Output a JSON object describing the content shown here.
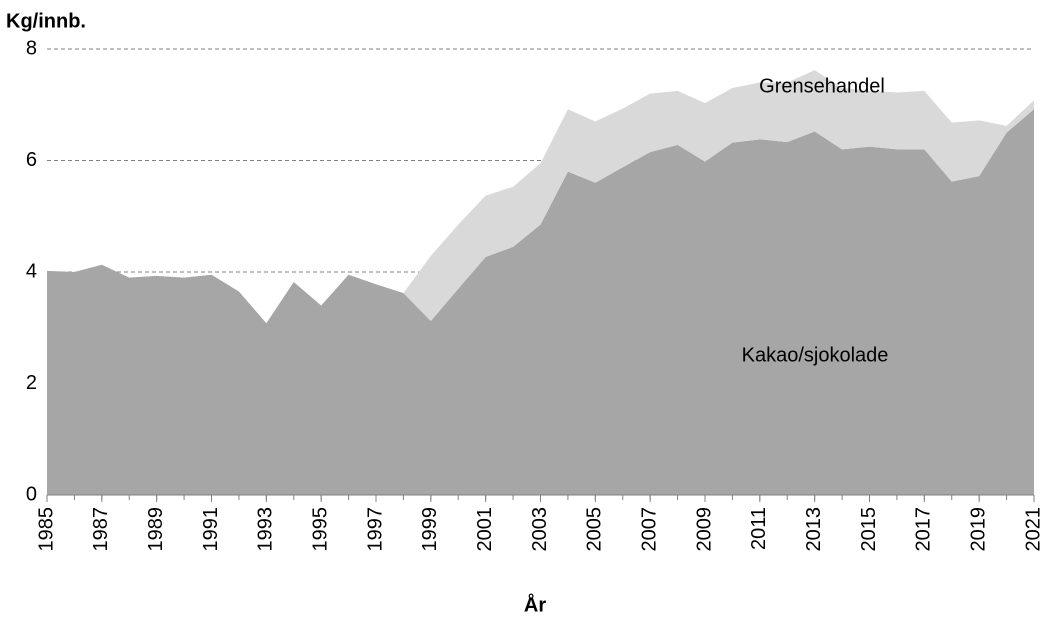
{
  "chart_data": {
    "type": "stacked_area",
    "y_label": "Kg/innb.",
    "x_label": "År",
    "x": [
      1985,
      1986,
      1987,
      1988,
      1989,
      1990,
      1991,
      1992,
      1993,
      1994,
      1995,
      1996,
      1997,
      1998,
      1999,
      2000,
      2001,
      2002,
      2003,
      2004,
      2005,
      2006,
      2007,
      2008,
      2009,
      2010,
      2011,
      2012,
      2013,
      2014,
      2015,
      2016,
      2017,
      2018,
      2019,
      2020,
      2021
    ],
    "series": [
      {
        "name": "Kakao/sjokolade",
        "color": "#a6a6a6",
        "values": [
          4.02,
          4.0,
          4.13,
          3.9,
          3.93,
          3.9,
          3.95,
          3.65,
          3.08,
          3.82,
          3.4,
          3.95,
          3.78,
          3.62,
          3.12,
          3.7,
          4.27,
          4.45,
          4.85,
          5.8,
          5.6,
          5.88,
          6.15,
          6.28,
          5.98,
          6.32,
          6.38,
          6.33,
          6.52,
          6.2,
          6.25,
          6.2,
          6.2,
          5.62,
          5.72,
          6.5,
          6.92
        ]
      },
      {
        "name": "Grensehandel",
        "color": "#d9d9d9",
        "values": [
          0,
          0,
          0,
          0,
          0,
          0,
          0,
          0,
          0,
          0,
          0,
          0,
          0,
          0,
          1.17,
          1.15,
          1.1,
          1.08,
          1.1,
          1.12,
          1.1,
          1.05,
          1.05,
          0.97,
          1.05,
          0.98,
          1.02,
          1.07,
          1.1,
          1.1,
          1.0,
          1.02,
          1.05,
          1.06,
          1.0,
          0.12,
          0.16
        ]
      }
    ],
    "xlim": [
      1985,
      2021
    ],
    "xticks": [
      1985,
      1987,
      1989,
      1991,
      1993,
      1995,
      1997,
      1999,
      2001,
      2003,
      2005,
      2007,
      2009,
      2011,
      2013,
      2015,
      2017,
      2019,
      2021
    ],
    "ylim": [
      0,
      8
    ],
    "yticks": [
      0,
      2,
      4,
      6,
      8
    ],
    "grid": true
  }
}
